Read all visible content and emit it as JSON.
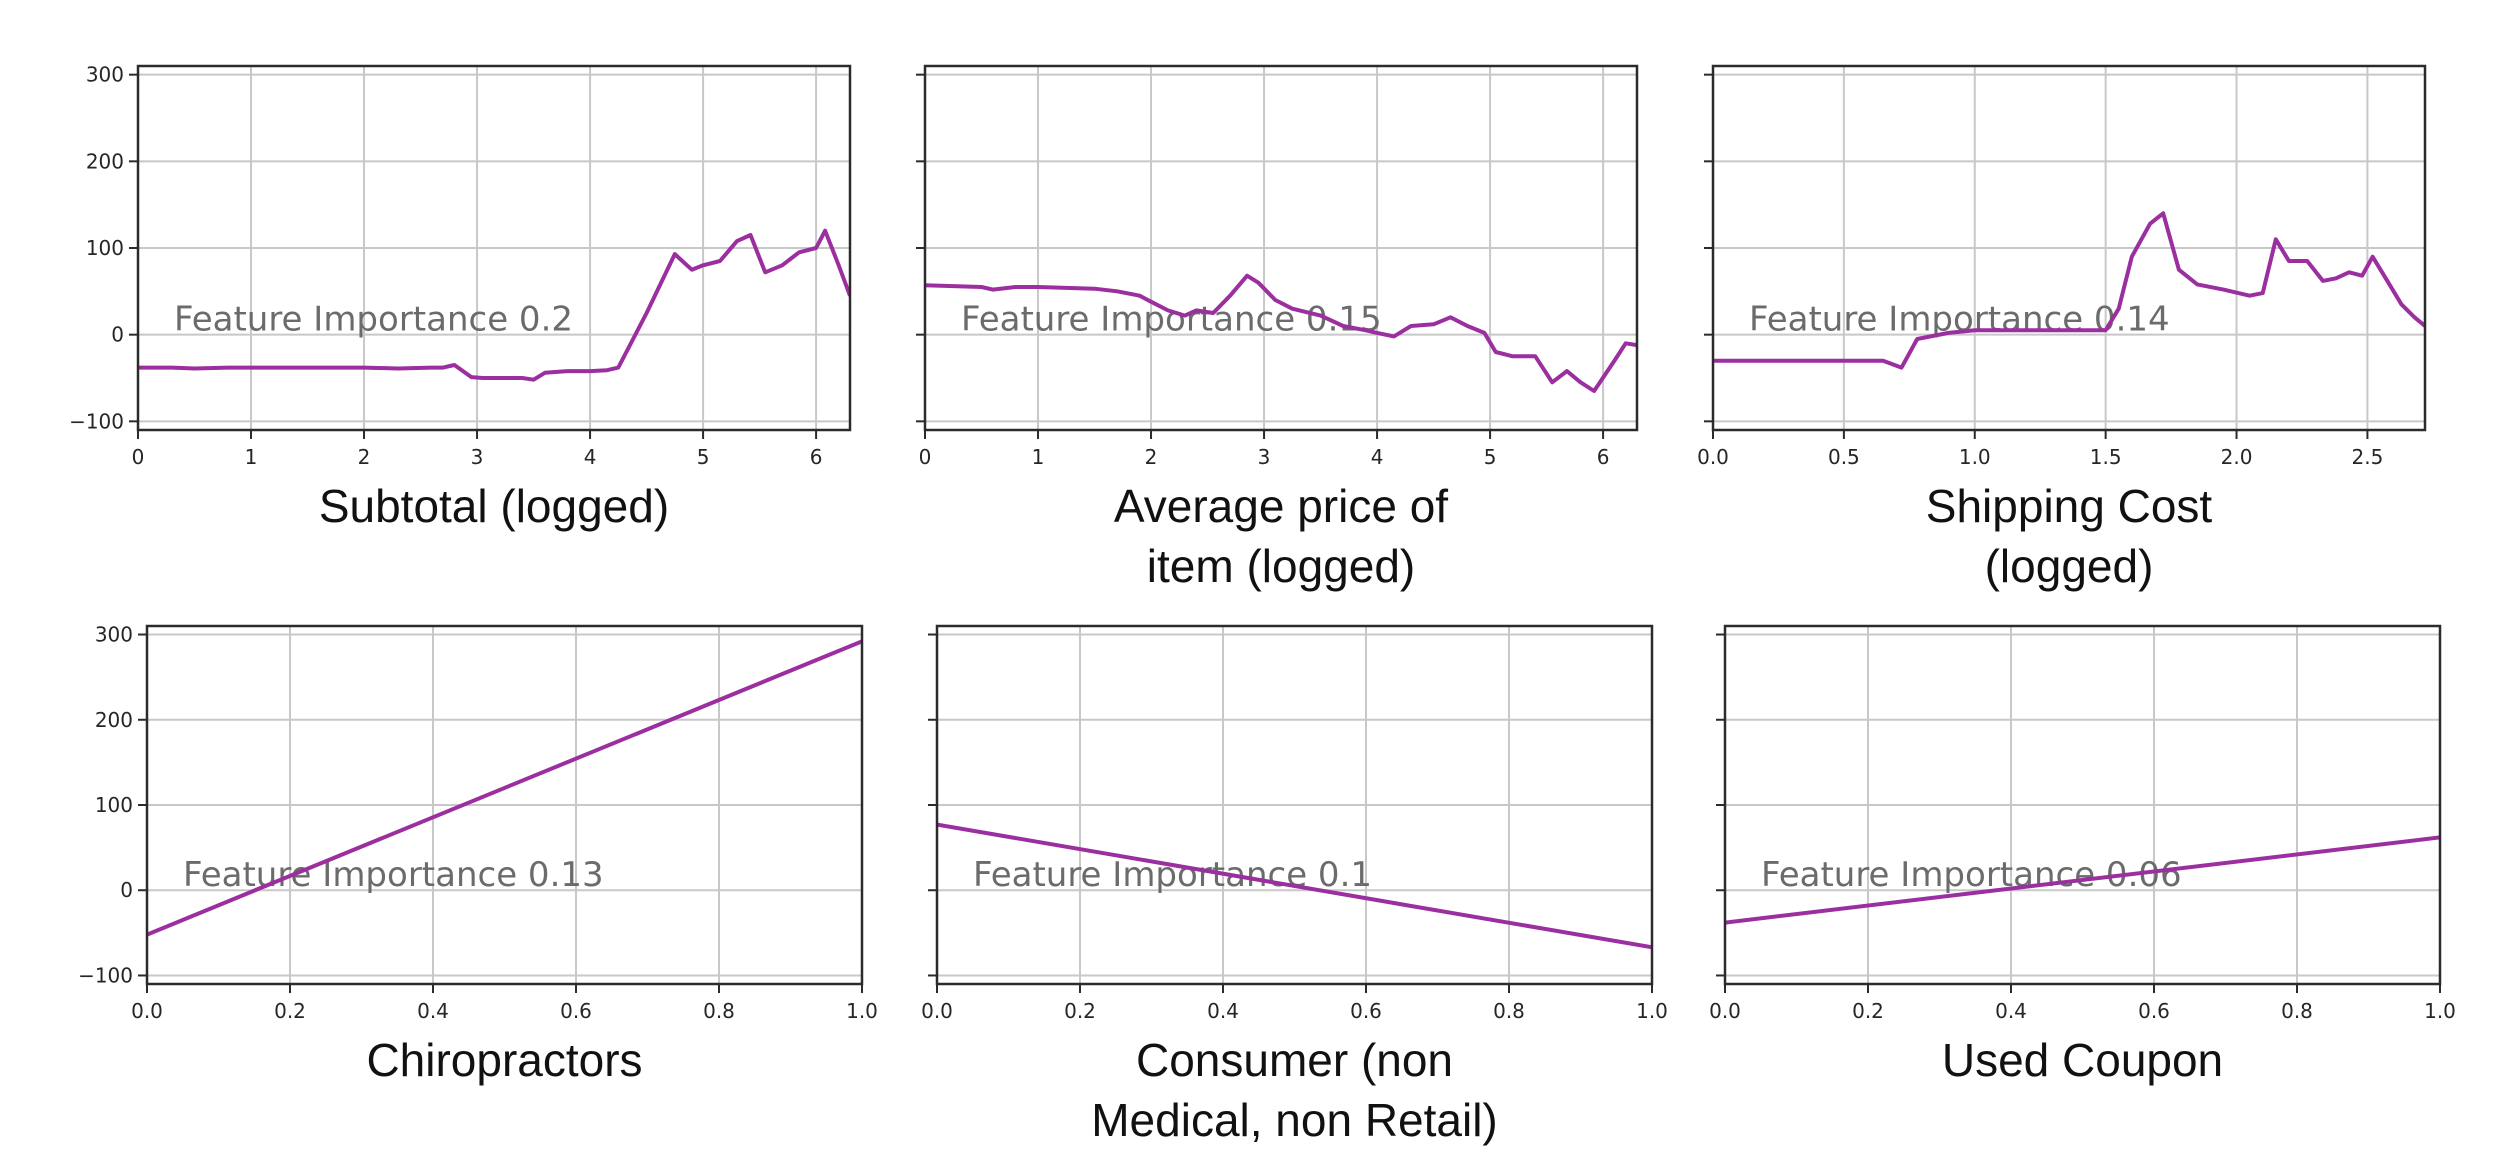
{
  "style": {
    "line_color": "#9b2fa0"
  },
  "chart_data": [
    {
      "type": "line",
      "xlabel": [
        "Subtotal (logged)"
      ],
      "annotation": "Feature Importance 0.2",
      "xlim": [
        0,
        6.3
      ],
      "ylim": [
        -110,
        310
      ],
      "xticks": [
        0,
        1,
        2,
        3,
        4,
        5,
        6
      ],
      "xtick_labels": [
        "0",
        "1",
        "2",
        "3",
        "4",
        "5",
        "6"
      ],
      "yticks": [
        -100,
        0,
        100,
        200,
        300
      ],
      "ytick_labels": [
        "−100",
        "0",
        "100",
        "200",
        "300"
      ],
      "show_ytick_labels": true,
      "grid": true,
      "x": [
        0,
        0.3,
        0.5,
        0.8,
        1.0,
        1.3,
        1.6,
        2.0,
        2.3,
        2.6,
        2.7,
        2.8,
        2.95,
        3.05,
        3.2,
        3.4,
        3.5,
        3.6,
        3.8,
        4.0,
        4.15,
        4.25,
        4.5,
        4.75,
        4.9,
        5.0,
        5.15,
        5.3,
        5.42,
        5.55,
        5.7,
        5.85,
        6.0,
        6.08,
        6.2,
        6.3
      ],
      "y": [
        -38,
        -38,
        -39,
        -38,
        -38,
        -38,
        -38,
        -38,
        -39,
        -38,
        -38,
        -35,
        -49,
        -50,
        -50,
        -50,
        -52,
        -44,
        -42,
        -42,
        -41,
        -38,
        25,
        93,
        75,
        80,
        85,
        108,
        115,
        72,
        80,
        95,
        100,
        120,
        80,
        45
      ]
    },
    {
      "type": "line",
      "xlabel": [
        "Average price of",
        "item (logged)"
      ],
      "annotation": "Feature Importance 0.15",
      "xlim": [
        0,
        6.3
      ],
      "ylim": [
        -110,
        310
      ],
      "xticks": [
        0,
        1,
        2,
        3,
        4,
        5,
        6
      ],
      "xtick_labels": [
        "0",
        "1",
        "2",
        "3",
        "4",
        "5",
        "6"
      ],
      "yticks": [
        -100,
        0,
        100,
        200,
        300
      ],
      "ytick_labels": [
        "−100",
        "0",
        "100",
        "200",
        "300"
      ],
      "show_ytick_labels": false,
      "grid": true,
      "x": [
        0,
        0.5,
        0.6,
        0.8,
        1.0,
        1.5,
        1.7,
        1.9,
        2.0,
        2.15,
        2.3,
        2.4,
        2.55,
        2.7,
        2.85,
        2.95,
        3.1,
        3.25,
        3.5,
        3.7,
        3.9,
        4.0,
        4.15,
        4.3,
        4.5,
        4.65,
        4.8,
        4.95,
        5.05,
        5.2,
        5.4,
        5.55,
        5.68,
        5.8,
        5.92,
        6.1,
        6.2,
        6.3
      ],
      "y": [
        57,
        55,
        52,
        55,
        55,
        53,
        50,
        45,
        38,
        28,
        22,
        28,
        25,
        45,
        68,
        60,
        40,
        30,
        22,
        10,
        5,
        2,
        -2,
        10,
        12,
        20,
        10,
        2,
        -20,
        -25,
        -25,
        -55,
        -42,
        -55,
        -65,
        -30,
        -10,
        -12
      ]
    },
    {
      "type": "line",
      "xlabel": [
        "Shipping Cost",
        "(logged)"
      ],
      "annotation": "Feature Importance 0.14",
      "xlim": [
        0,
        2.72
      ],
      "ylim": [
        -110,
        310
      ],
      "xticks": [
        0,
        0.5,
        1.0,
        1.5,
        2.0,
        2.5
      ],
      "xtick_labels": [
        "0.0",
        "0.5",
        "1.0",
        "1.5",
        "2.0",
        "2.5"
      ],
      "yticks": [
        -100,
        0,
        100,
        200,
        300
      ],
      "ytick_labels": [
        "−100",
        "0",
        "100",
        "200",
        "300"
      ],
      "show_ytick_labels": false,
      "grid": true,
      "x": [
        0,
        0.3,
        0.65,
        0.72,
        0.78,
        0.9,
        1.0,
        1.2,
        1.4,
        1.5,
        1.55,
        1.6,
        1.67,
        1.72,
        1.78,
        1.85,
        1.95,
        2.05,
        2.1,
        2.15,
        2.2,
        2.27,
        2.33,
        2.38,
        2.43,
        2.48,
        2.52,
        2.58,
        2.63,
        2.68,
        2.72
      ],
      "y": [
        -30,
        -30,
        -30,
        -38,
        -5,
        2,
        5,
        5,
        5,
        5,
        30,
        90,
        128,
        140,
        75,
        58,
        52,
        45,
        48,
        110,
        85,
        85,
        62,
        65,
        72,
        68,
        90,
        60,
        35,
        20,
        10
      ]
    },
    {
      "type": "line",
      "xlabel": [
        "Chiropractors"
      ],
      "annotation": "Feature Importance 0.13",
      "xlim": [
        0,
        1
      ],
      "ylim": [
        -110,
        310
      ],
      "xticks": [
        0,
        0.2,
        0.4,
        0.6,
        0.8,
        1.0
      ],
      "xtick_labels": [
        "0.0",
        "0.2",
        "0.4",
        "0.6",
        "0.8",
        "1.0"
      ],
      "yticks": [
        -100,
        0,
        100,
        200,
        300
      ],
      "ytick_labels": [
        "−100",
        "0",
        "100",
        "200",
        "300"
      ],
      "show_ytick_labels": true,
      "grid": true,
      "x": [
        0,
        1
      ],
      "y": [
        -52,
        292
      ]
    },
    {
      "type": "line",
      "xlabel": [
        "Consumer (non",
        "Medical, non Retail)"
      ],
      "annotation": "Feature Importance 0.1",
      "xlim": [
        0,
        1
      ],
      "ylim": [
        -110,
        310
      ],
      "xticks": [
        0,
        0.2,
        0.4,
        0.6,
        0.8,
        1.0
      ],
      "xtick_labels": [
        "0.0",
        "0.2",
        "0.4",
        "0.6",
        "0.8",
        "1.0"
      ],
      "yticks": [
        -100,
        0,
        100,
        200,
        300
      ],
      "ytick_labels": [
        "−100",
        "0",
        "100",
        "200",
        "300"
      ],
      "show_ytick_labels": false,
      "grid": true,
      "x": [
        0,
        1
      ],
      "y": [
        77,
        -67
      ]
    },
    {
      "type": "line",
      "xlabel": [
        "Used Coupon"
      ],
      "annotation": "Feature Importance 0.06",
      "xlim": [
        0,
        1
      ],
      "ylim": [
        -110,
        310
      ],
      "xticks": [
        0,
        0.2,
        0.4,
        0.6,
        0.8,
        1.0
      ],
      "xtick_labels": [
        "0.0",
        "0.2",
        "0.4",
        "0.6",
        "0.8",
        "1.0"
      ],
      "yticks": [
        -100,
        0,
        100,
        200,
        300
      ],
      "ytick_labels": [
        "−100",
        "0",
        "100",
        "200",
        "300"
      ],
      "show_ytick_labels": false,
      "grid": true,
      "x": [
        0,
        1
      ],
      "y": [
        -38,
        62
      ]
    }
  ]
}
